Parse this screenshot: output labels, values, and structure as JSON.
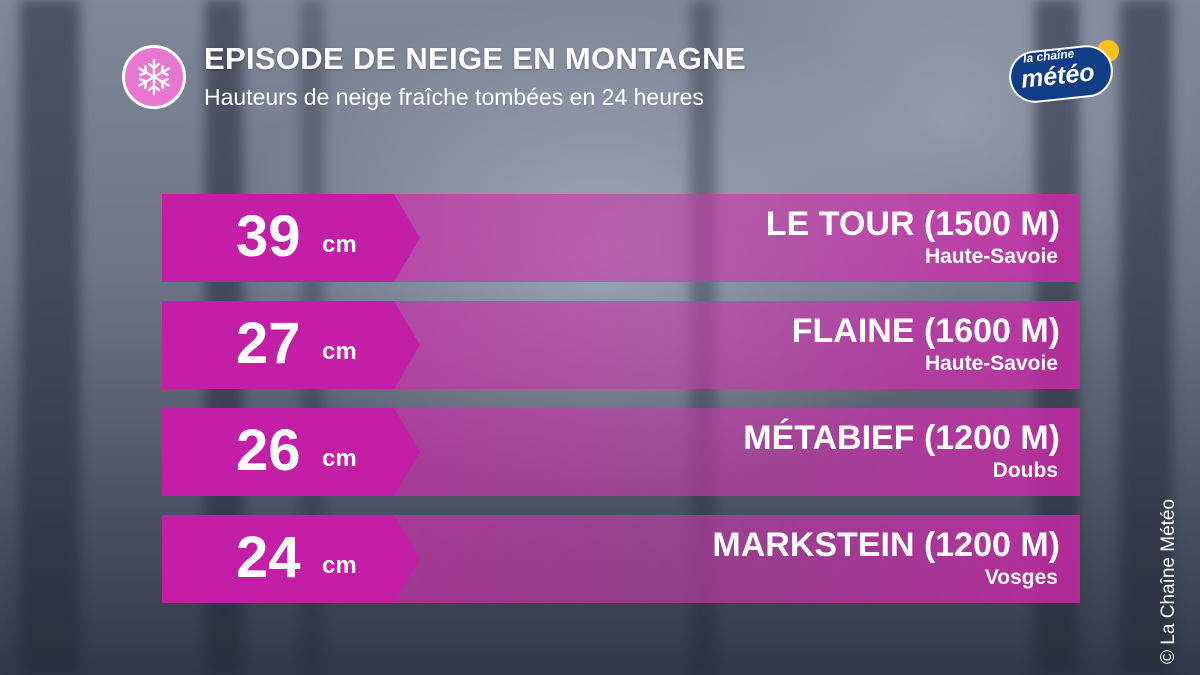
{
  "header": {
    "title": "EPISODE DE NEIGE EN MONTAGNE",
    "subtitle": "Hauteurs de neige fraîche tombées en 24 heures",
    "icon": "snowflake-icon"
  },
  "logo": {
    "line1": "la chaîne",
    "line2": "météo"
  },
  "colors": {
    "accent": "#c21ea6",
    "badge": "#e877d0",
    "logo_blue": "#0f3d86",
    "logo_sun": "#ffc21a"
  },
  "rows": [
    {
      "value": "39",
      "unit": "cm",
      "station": "LE TOUR (1500 M)",
      "region": "Haute-Savoie"
    },
    {
      "value": "27",
      "unit": "cm",
      "station": "FLAINE (1600 M)",
      "region": "Haute-Savoie"
    },
    {
      "value": "26",
      "unit": "cm",
      "station": "MÉTABIEF (1200 M)",
      "region": "Doubs"
    },
    {
      "value": "24",
      "unit": "cm",
      "station": "MARKSTEIN (1200 M)",
      "region": "Vosges"
    }
  ],
  "footer": {
    "copyright": "© La Chaîne Météo"
  }
}
